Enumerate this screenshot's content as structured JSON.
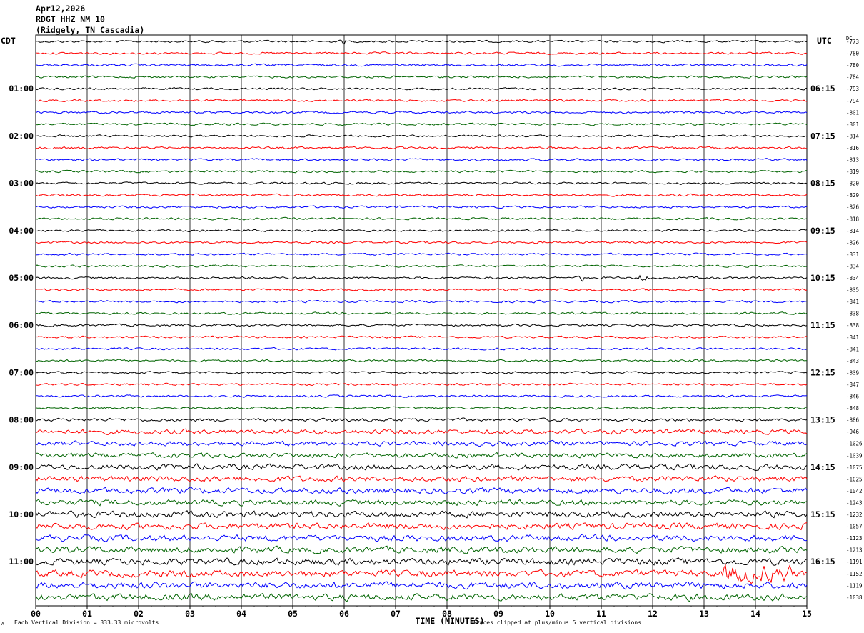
{
  "header": {
    "date": "Apr12,2026",
    "station": "RDGT HHZ NM 10",
    "location": "(Ridgely, TN Cascadia)"
  },
  "left_tz": "CDT",
  "right_tz": "UTC",
  "dc_label": "DC",
  "footer": {
    "division": "Each Vertical Division =  333.33 microvolts",
    "clipped": "Traces clipped at plus/minus 5 vertical divisions",
    "corner_mark": "A"
  },
  "colors": [
    "#000000",
    "#ff0000",
    "#0000ff",
    "#006400"
  ],
  "chart_data": {
    "type": "line",
    "xlabel": "TIME (MINUTES)",
    "x_ticks": [
      "00",
      "01",
      "02",
      "03",
      "04",
      "05",
      "06",
      "07",
      "08",
      "09",
      "10",
      "11",
      "12",
      "13",
      "14",
      "15"
    ],
    "xlim": [
      0,
      15
    ],
    "left_hour_labels": [
      "01:00",
      "02:00",
      "03:00",
      "04:00",
      "05:00",
      "06:00",
      "07:00",
      "08:00",
      "09:00",
      "10:00",
      "11:00"
    ],
    "right_hour_labels": [
      "06:15",
      "07:15",
      "08:15",
      "09:15",
      "10:15",
      "11:15",
      "12:15",
      "13:15",
      "14:15",
      "15:15",
      "16:15"
    ],
    "dc_offsets": [
      "-773",
      "-780",
      "-780",
      "-784",
      "-793",
      "-794",
      "-801",
      "-801",
      "-814",
      "-816",
      "-813",
      "-819",
      "-820",
      "-829",
      "-826",
      "-818",
      "-814",
      "-826",
      "-831",
      "-834",
      "-834",
      "-835",
      "-841",
      "-838",
      "-838",
      "-841",
      "-841",
      "-843",
      "-839",
      "-847",
      "-846",
      "-848",
      "-886",
      "-946",
      "-1026",
      "-1039",
      "-1075",
      "-1025",
      "-1042",
      "-1243",
      "-1232",
      "-1057",
      "-1123",
      "-1213",
      "-1191",
      "-1152",
      "-1119",
      "-1038"
    ],
    "trace_color_cycle": [
      "black",
      "red",
      "blue",
      "green"
    ],
    "trace_count": 48
  }
}
